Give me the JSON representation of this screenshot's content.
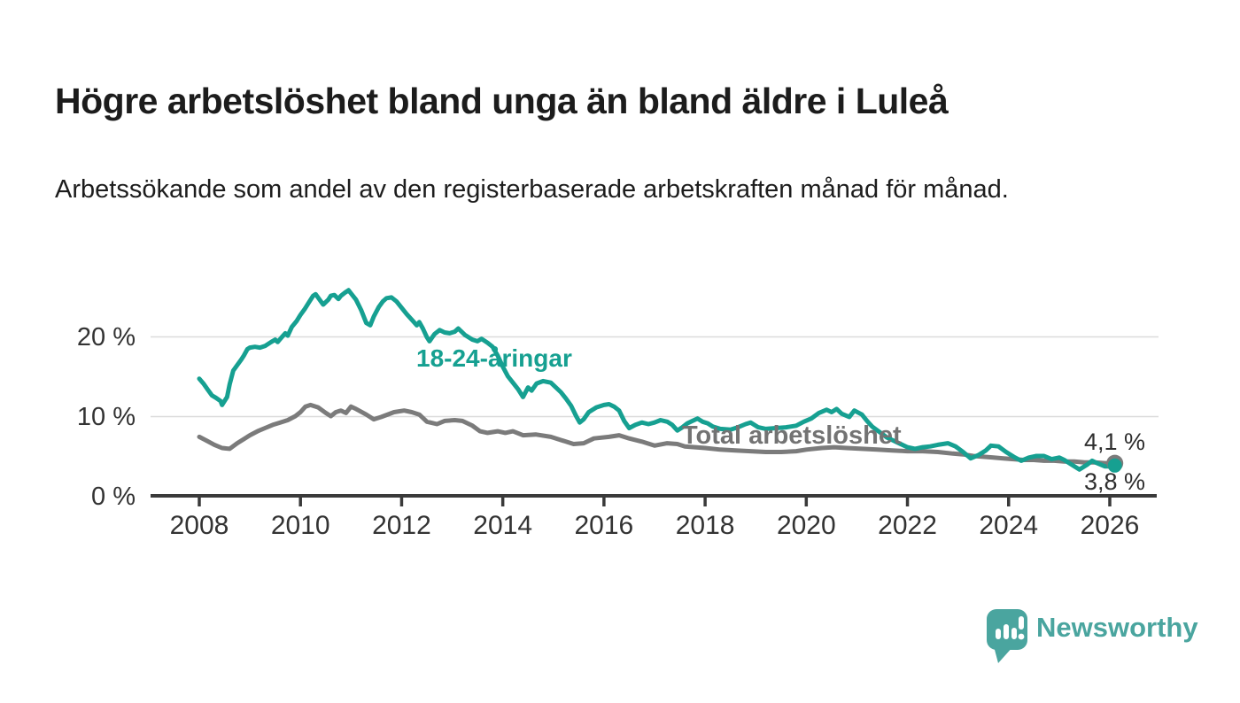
{
  "header": {
    "title": "Högre arbetslöshet bland unga än bland äldre i Luleå",
    "subtitle": "Arbetssökande som andel av den registerbaserade arbetskraften månad för månad."
  },
  "annotations": {
    "series_label_youth": "18-24-åringar",
    "series_label_total": "Total arbetslöshet",
    "end_label_total": "4,1 %",
    "end_label_youth": "3,8 %"
  },
  "footer": {
    "brand": "Newsworthy",
    "brand_color": "#4aa59f",
    "logo_icon": "bar-chart-speech-bubble-icon"
  },
  "chart_data": {
    "type": "line",
    "title": "Högre arbetslöshet bland unga än bland äldre i Luleå",
    "xlabel": "",
    "ylabel": "",
    "grid": "horizontal",
    "legend_position": "inline-labels",
    "colors": {
      "youth_line": "#16a091",
      "total_line": "#7b7b7b",
      "gridline": "#dcdcdc",
      "axis": "#3a3a3a",
      "tick_text": "#333333"
    },
    "x_axis": {
      "range": [
        2007.0,
        2027.0
      ],
      "ticks": [
        2008,
        2010,
        2012,
        2014,
        2016,
        2018,
        2020,
        2022,
        2024,
        2026
      ]
    },
    "y_axis": {
      "range": [
        0,
        27
      ],
      "ticks": [
        {
          "value": 0,
          "label": "0 %"
        },
        {
          "value": 10,
          "label": "10 %"
        },
        {
          "value": 20,
          "label": "20 %"
        }
      ]
    },
    "series": [
      {
        "name": "18-24-åringar",
        "color": "#16a091",
        "end_value_label": "3,8 %",
        "end_dot_radius": 8,
        "points": [
          [
            2008.0,
            14.7
          ],
          [
            2008.08,
            14.1
          ],
          [
            2008.17,
            13.3
          ],
          [
            2008.25,
            12.6
          ],
          [
            2008.33,
            12.3
          ],
          [
            2008.42,
            11.9
          ],
          [
            2008.45,
            11.4
          ],
          [
            2008.55,
            12.4
          ],
          [
            2008.6,
            14.0
          ],
          [
            2008.67,
            15.7
          ],
          [
            2008.75,
            16.4
          ],
          [
            2008.83,
            17.1
          ],
          [
            2008.88,
            17.6
          ],
          [
            2008.95,
            18.4
          ],
          [
            2009.0,
            18.6
          ],
          [
            2009.1,
            18.7
          ],
          [
            2009.2,
            18.6
          ],
          [
            2009.3,
            18.8
          ],
          [
            2009.42,
            19.3
          ],
          [
            2009.5,
            19.6
          ],
          [
            2009.55,
            19.3
          ],
          [
            2009.63,
            19.9
          ],
          [
            2009.7,
            20.4
          ],
          [
            2009.75,
            20.1
          ],
          [
            2009.83,
            21.2
          ],
          [
            2009.92,
            21.9
          ],
          [
            2010.0,
            22.7
          ],
          [
            2010.08,
            23.4
          ],
          [
            2010.17,
            24.3
          ],
          [
            2010.25,
            25.1
          ],
          [
            2010.3,
            25.3
          ],
          [
            2010.38,
            24.6
          ],
          [
            2010.45,
            24.0
          ],
          [
            2010.55,
            24.6
          ],
          [
            2010.6,
            25.1
          ],
          [
            2010.67,
            25.2
          ],
          [
            2010.75,
            24.7
          ],
          [
            2010.8,
            25.1
          ],
          [
            2010.88,
            25.5
          ],
          [
            2010.95,
            25.8
          ],
          [
            2011.0,
            25.4
          ],
          [
            2011.1,
            24.6
          ],
          [
            2011.2,
            23.3
          ],
          [
            2011.3,
            21.7
          ],
          [
            2011.38,
            21.4
          ],
          [
            2011.45,
            22.5
          ],
          [
            2011.55,
            23.7
          ],
          [
            2011.63,
            24.4
          ],
          [
            2011.7,
            24.8
          ],
          [
            2011.8,
            24.9
          ],
          [
            2011.9,
            24.4
          ],
          [
            2012.0,
            23.6
          ],
          [
            2012.1,
            22.8
          ],
          [
            2012.2,
            22.1
          ],
          [
            2012.3,
            21.4
          ],
          [
            2012.35,
            21.8
          ],
          [
            2012.42,
            21.0
          ],
          [
            2012.5,
            19.9
          ],
          [
            2012.55,
            19.4
          ],
          [
            2012.65,
            20.3
          ],
          [
            2012.75,
            20.8
          ],
          [
            2012.85,
            20.5
          ],
          [
            2012.95,
            20.4
          ],
          [
            2013.05,
            20.6
          ],
          [
            2013.12,
            21.0
          ],
          [
            2013.25,
            20.2
          ],
          [
            2013.4,
            19.6
          ],
          [
            2013.5,
            19.4
          ],
          [
            2013.58,
            19.7
          ],
          [
            2013.7,
            19.2
          ],
          [
            2013.8,
            18.7
          ],
          [
            2013.9,
            17.6
          ],
          [
            2014.0,
            16.2
          ],
          [
            2014.1,
            15.0
          ],
          [
            2014.2,
            14.2
          ],
          [
            2014.3,
            13.4
          ],
          [
            2014.4,
            12.4
          ],
          [
            2014.5,
            13.6
          ],
          [
            2014.57,
            13.2
          ],
          [
            2014.67,
            14.1
          ],
          [
            2014.8,
            14.4
          ],
          [
            2014.95,
            14.2
          ],
          [
            2015.0,
            13.9
          ],
          [
            2015.15,
            13.0
          ],
          [
            2015.25,
            12.2
          ],
          [
            2015.35,
            11.3
          ],
          [
            2015.45,
            10.0
          ],
          [
            2015.52,
            9.2
          ],
          [
            2015.6,
            9.6
          ],
          [
            2015.7,
            10.5
          ],
          [
            2015.85,
            11.1
          ],
          [
            2016.0,
            11.4
          ],
          [
            2016.1,
            11.5
          ],
          [
            2016.2,
            11.2
          ],
          [
            2016.3,
            10.7
          ],
          [
            2016.4,
            9.4
          ],
          [
            2016.5,
            8.5
          ],
          [
            2016.62,
            8.9
          ],
          [
            2016.75,
            9.2
          ],
          [
            2016.88,
            9.0
          ],
          [
            2017.0,
            9.2
          ],
          [
            2017.12,
            9.5
          ],
          [
            2017.25,
            9.3
          ],
          [
            2017.35,
            8.9
          ],
          [
            2017.45,
            8.2
          ],
          [
            2017.55,
            8.6
          ],
          [
            2017.65,
            9.1
          ],
          [
            2017.75,
            9.4
          ],
          [
            2017.85,
            9.7
          ],
          [
            2017.95,
            9.3
          ],
          [
            2018.05,
            9.1
          ],
          [
            2018.15,
            8.7
          ],
          [
            2018.3,
            8.4
          ],
          [
            2018.5,
            8.3
          ],
          [
            2018.65,
            8.6
          ],
          [
            2018.8,
            9.0
          ],
          [
            2018.9,
            9.2
          ],
          [
            2019.05,
            8.6
          ],
          [
            2019.2,
            8.4
          ],
          [
            2019.4,
            8.5
          ],
          [
            2019.6,
            8.6
          ],
          [
            2019.8,
            8.8
          ],
          [
            2019.95,
            9.3
          ],
          [
            2020.1,
            9.7
          ],
          [
            2020.25,
            10.4
          ],
          [
            2020.4,
            10.8
          ],
          [
            2020.5,
            10.5
          ],
          [
            2020.6,
            10.9
          ],
          [
            2020.7,
            10.3
          ],
          [
            2020.85,
            9.9
          ],
          [
            2020.95,
            10.7
          ],
          [
            2021.1,
            10.2
          ],
          [
            2021.2,
            9.4
          ],
          [
            2021.3,
            8.7
          ],
          [
            2021.45,
            8.0
          ],
          [
            2021.6,
            7.3
          ],
          [
            2021.8,
            6.7
          ],
          [
            2022.0,
            6.1
          ],
          [
            2022.15,
            5.9
          ],
          [
            2022.3,
            6.1
          ],
          [
            2022.45,
            6.2
          ],
          [
            2022.6,
            6.4
          ],
          [
            2022.8,
            6.6
          ],
          [
            2022.95,
            6.2
          ],
          [
            2023.1,
            5.5
          ],
          [
            2023.25,
            4.7
          ],
          [
            2023.4,
            5.1
          ],
          [
            2023.55,
            5.7
          ],
          [
            2023.65,
            6.3
          ],
          [
            2023.8,
            6.2
          ],
          [
            2023.95,
            5.5
          ],
          [
            2024.1,
            4.9
          ],
          [
            2024.25,
            4.4
          ],
          [
            2024.4,
            4.8
          ],
          [
            2024.55,
            5.0
          ],
          [
            2024.7,
            5.0
          ],
          [
            2024.85,
            4.6
          ],
          [
            2025.0,
            4.8
          ],
          [
            2025.1,
            4.5
          ],
          [
            2025.25,
            3.9
          ],
          [
            2025.4,
            3.3
          ],
          [
            2025.55,
            3.9
          ],
          [
            2025.65,
            4.4
          ],
          [
            2025.75,
            4.1
          ],
          [
            2025.9,
            3.7
          ],
          [
            2026.0,
            3.7
          ],
          [
            2026.1,
            3.8
          ]
        ]
      },
      {
        "name": "Total arbetslöshet",
        "color": "#7b7b7b",
        "end_value_label": "4,1 %",
        "end_dot_radius": 9.5,
        "points": [
          [
            2008.0,
            7.4
          ],
          [
            2008.15,
            6.9
          ],
          [
            2008.3,
            6.4
          ],
          [
            2008.45,
            6.0
          ],
          [
            2008.6,
            5.9
          ],
          [
            2008.75,
            6.6
          ],
          [
            2008.9,
            7.2
          ],
          [
            2009.0,
            7.6
          ],
          [
            2009.15,
            8.1
          ],
          [
            2009.3,
            8.5
          ],
          [
            2009.45,
            8.9
          ],
          [
            2009.6,
            9.2
          ],
          [
            2009.75,
            9.5
          ],
          [
            2009.9,
            10.0
          ],
          [
            2010.0,
            10.5
          ],
          [
            2010.1,
            11.2
          ],
          [
            2010.2,
            11.4
          ],
          [
            2010.35,
            11.1
          ],
          [
            2010.5,
            10.4
          ],
          [
            2010.6,
            10.0
          ],
          [
            2010.7,
            10.5
          ],
          [
            2010.8,
            10.7
          ],
          [
            2010.9,
            10.4
          ],
          [
            2011.0,
            11.2
          ],
          [
            2011.1,
            10.9
          ],
          [
            2011.3,
            10.2
          ],
          [
            2011.45,
            9.6
          ],
          [
            2011.6,
            9.9
          ],
          [
            2011.85,
            10.5
          ],
          [
            2012.05,
            10.7
          ],
          [
            2012.2,
            10.5
          ],
          [
            2012.35,
            10.2
          ],
          [
            2012.5,
            9.3
          ],
          [
            2012.7,
            9.0
          ],
          [
            2012.85,
            9.4
          ],
          [
            2013.05,
            9.5
          ],
          [
            2013.2,
            9.4
          ],
          [
            2013.4,
            8.8
          ],
          [
            2013.55,
            8.1
          ],
          [
            2013.7,
            7.9
          ],
          [
            2013.9,
            8.1
          ],
          [
            2014.05,
            7.9
          ],
          [
            2014.2,
            8.1
          ],
          [
            2014.4,
            7.6
          ],
          [
            2014.65,
            7.7
          ],
          [
            2014.95,
            7.4
          ],
          [
            2015.1,
            7.1
          ],
          [
            2015.25,
            6.8
          ],
          [
            2015.4,
            6.5
          ],
          [
            2015.6,
            6.6
          ],
          [
            2015.8,
            7.2
          ],
          [
            2016.1,
            7.4
          ],
          [
            2016.3,
            7.6
          ],
          [
            2016.5,
            7.2
          ],
          [
            2016.75,
            6.8
          ],
          [
            2017.0,
            6.3
          ],
          [
            2017.25,
            6.6
          ],
          [
            2017.45,
            6.5
          ],
          [
            2017.6,
            6.2
          ],
          [
            2017.8,
            6.1
          ],
          [
            2018.0,
            6.0
          ],
          [
            2018.3,
            5.8
          ],
          [
            2018.6,
            5.7
          ],
          [
            2018.9,
            5.6
          ],
          [
            2019.2,
            5.5
          ],
          [
            2019.5,
            5.5
          ],
          [
            2019.8,
            5.6
          ],
          [
            2020.0,
            5.8
          ],
          [
            2020.3,
            6.0
          ],
          [
            2020.55,
            6.1
          ],
          [
            2020.8,
            6.0
          ],
          [
            2021.1,
            5.9
          ],
          [
            2021.4,
            5.8
          ],
          [
            2021.7,
            5.7
          ],
          [
            2022.0,
            5.6
          ],
          [
            2022.3,
            5.6
          ],
          [
            2022.6,
            5.5
          ],
          [
            2022.9,
            5.3
          ],
          [
            2023.1,
            5.2
          ],
          [
            2023.3,
            5.0
          ],
          [
            2023.5,
            4.9
          ],
          [
            2023.7,
            4.8
          ],
          [
            2023.9,
            4.7
          ],
          [
            2024.1,
            4.6
          ],
          [
            2024.3,
            4.5
          ],
          [
            2024.5,
            4.5
          ],
          [
            2024.7,
            4.4
          ],
          [
            2024.9,
            4.4
          ],
          [
            2025.1,
            4.3
          ],
          [
            2025.3,
            4.3
          ],
          [
            2025.5,
            4.2
          ],
          [
            2025.7,
            4.2
          ],
          [
            2025.9,
            4.1
          ],
          [
            2026.1,
            4.1
          ]
        ]
      }
    ]
  }
}
